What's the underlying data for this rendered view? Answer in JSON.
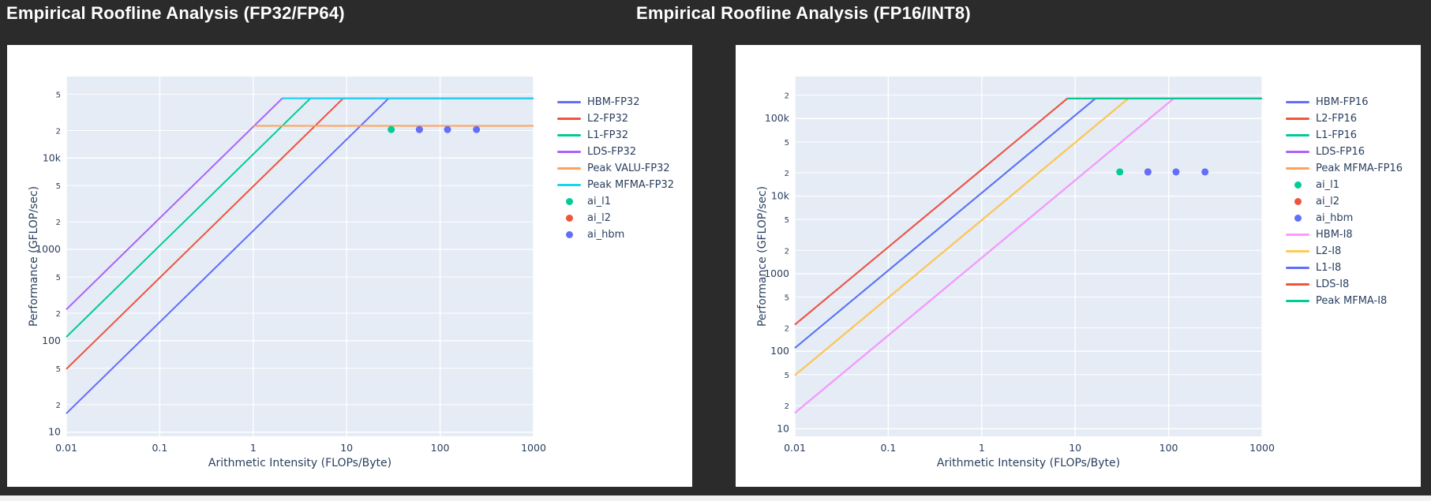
{
  "theme": {
    "page_background": "#2b2b2b",
    "card_background": "#ffffff",
    "plot_background": "#e5ecf6",
    "grid_color": "#ffffff",
    "text_color": "#2a3f5f",
    "title_color": "#ffffff"
  },
  "chart_data": [
    {
      "type": "line",
      "title": "Empirical Roofline Analysis (FP32/FP64)",
      "xlabel": "Arithmetic Intensity (FLOPs/Byte)",
      "ylabel": "Performance (GFLOP/sec)",
      "log_x": true,
      "log_y": true,
      "grid": true,
      "legend_position": "right",
      "xlim": [
        0.01,
        1000
      ],
      "ylim": [
        9,
        78000
      ],
      "x_tick_labels": [
        "0.01",
        "0.1",
        "1",
        "10",
        "100",
        "1000"
      ],
      "y_tick_labels": [
        "10",
        "2",
        "5",
        "100",
        "2",
        "5",
        "1000",
        "2",
        "5",
        "10k",
        "2",
        "5"
      ],
      "series": [
        {
          "name": "HBM-FP32",
          "kind": "bandwidth_roof",
          "color": "#636efa",
          "bandwidth_gbps": 1600,
          "cap_gflops": 45000
        },
        {
          "name": "L2-FP32",
          "kind": "bandwidth_roof",
          "color": "#ef553b",
          "bandwidth_gbps": 4900,
          "cap_gflops": 45000
        },
        {
          "name": "L1-FP32",
          "kind": "bandwidth_roof",
          "color": "#00cc96",
          "bandwidth_gbps": 11000,
          "cap_gflops": 45000
        },
        {
          "name": "LDS-FP32",
          "kind": "bandwidth_roof",
          "color": "#ab63fa",
          "bandwidth_gbps": 22000,
          "cap_gflops": 45000
        },
        {
          "name": "Peak VALU-FP32",
          "kind": "peak_roof",
          "color": "#ffa15a",
          "peak_gflops": 22500,
          "start_ai": 1.02
        },
        {
          "name": "Peak MFMA-FP32",
          "kind": "peak_roof",
          "color": "#19d3f3",
          "peak_gflops": 45000,
          "start_ai": 2.05
        },
        {
          "name": "ai_l1",
          "kind": "scatter",
          "color": "#00cc96",
          "points": [
            [
              30,
              20500
            ]
          ]
        },
        {
          "name": "ai_l2",
          "kind": "scatter",
          "color": "#ef553b",
          "points": [
            [
              60,
              20500
            ]
          ]
        },
        {
          "name": "ai_hbm",
          "kind": "scatter",
          "color": "#636efa",
          "points": [
            [
              60,
              20500
            ],
            [
              120,
              20500
            ],
            [
              245,
              20500
            ]
          ]
        }
      ]
    },
    {
      "type": "line",
      "title": "Empirical Roofline Analysis (FP16/INT8)",
      "xlabel": "Arithmetic Intensity (FLOPs/Byte)",
      "ylabel": "Performance (GFLOP/sec)",
      "log_x": true,
      "log_y": true,
      "grid": true,
      "legend_position": "right",
      "xlim": [
        0.01,
        1000
      ],
      "ylim": [
        8,
        348000
      ],
      "x_tick_labels": [
        "0.01",
        "0.1",
        "1",
        "10",
        "100",
        "1000"
      ],
      "y_tick_labels": [
        "10",
        "2",
        "5",
        "100",
        "2",
        "5",
        "1000",
        "2",
        "5",
        "10k",
        "2",
        "5",
        "100k",
        "2"
      ],
      "series": [
        {
          "name": "HBM-FP16",
          "kind": "bandwidth_roof",
          "color": "#636efa",
          "bandwidth_gbps": 1600,
          "cap_gflops": 181000
        },
        {
          "name": "L2-FP16",
          "kind": "bandwidth_roof",
          "color": "#ef553b",
          "bandwidth_gbps": 4900,
          "cap_gflops": 181000
        },
        {
          "name": "L1-FP16",
          "kind": "bandwidth_roof",
          "color": "#00cc96",
          "bandwidth_gbps": 11000,
          "cap_gflops": 181000
        },
        {
          "name": "LDS-FP16",
          "kind": "bandwidth_roof",
          "color": "#ab63fa",
          "bandwidth_gbps": 22000,
          "cap_gflops": 181000
        },
        {
          "name": "Peak MFMA-FP16",
          "kind": "peak_roof",
          "color": "#ffa15a",
          "peak_gflops": 181000,
          "start_ai": 8.2
        },
        {
          "name": "ai_l1",
          "kind": "scatter",
          "color": "#00cc96",
          "points": [
            [
              30,
              20500
            ]
          ]
        },
        {
          "name": "ai_l2",
          "kind": "scatter",
          "color": "#ef553b",
          "points": [
            [
              60,
              20500
            ]
          ]
        },
        {
          "name": "ai_hbm",
          "kind": "scatter",
          "color": "#636efa",
          "points": [
            [
              60,
              20500
            ],
            [
              120,
              20500
            ],
            [
              245,
              20500
            ]
          ]
        },
        {
          "name": "HBM-I8",
          "kind": "bandwidth_roof",
          "color": "#ff97ff",
          "bandwidth_gbps": 1600,
          "cap_gflops": 181000
        },
        {
          "name": "L2-I8",
          "kind": "bandwidth_roof",
          "color": "#fecb52",
          "bandwidth_gbps": 4900,
          "cap_gflops": 181000
        },
        {
          "name": "L1-I8",
          "kind": "bandwidth_roof",
          "color": "#636efa",
          "bandwidth_gbps": 11000,
          "cap_gflops": 181000
        },
        {
          "name": "LDS-I8",
          "kind": "bandwidth_roof",
          "color": "#ef553b",
          "bandwidth_gbps": 22000,
          "cap_gflops": 181000
        },
        {
          "name": "Peak MFMA-I8",
          "kind": "peak_roof",
          "color": "#00cc96",
          "peak_gflops": 181000,
          "start_ai": 8.2
        }
      ]
    }
  ]
}
